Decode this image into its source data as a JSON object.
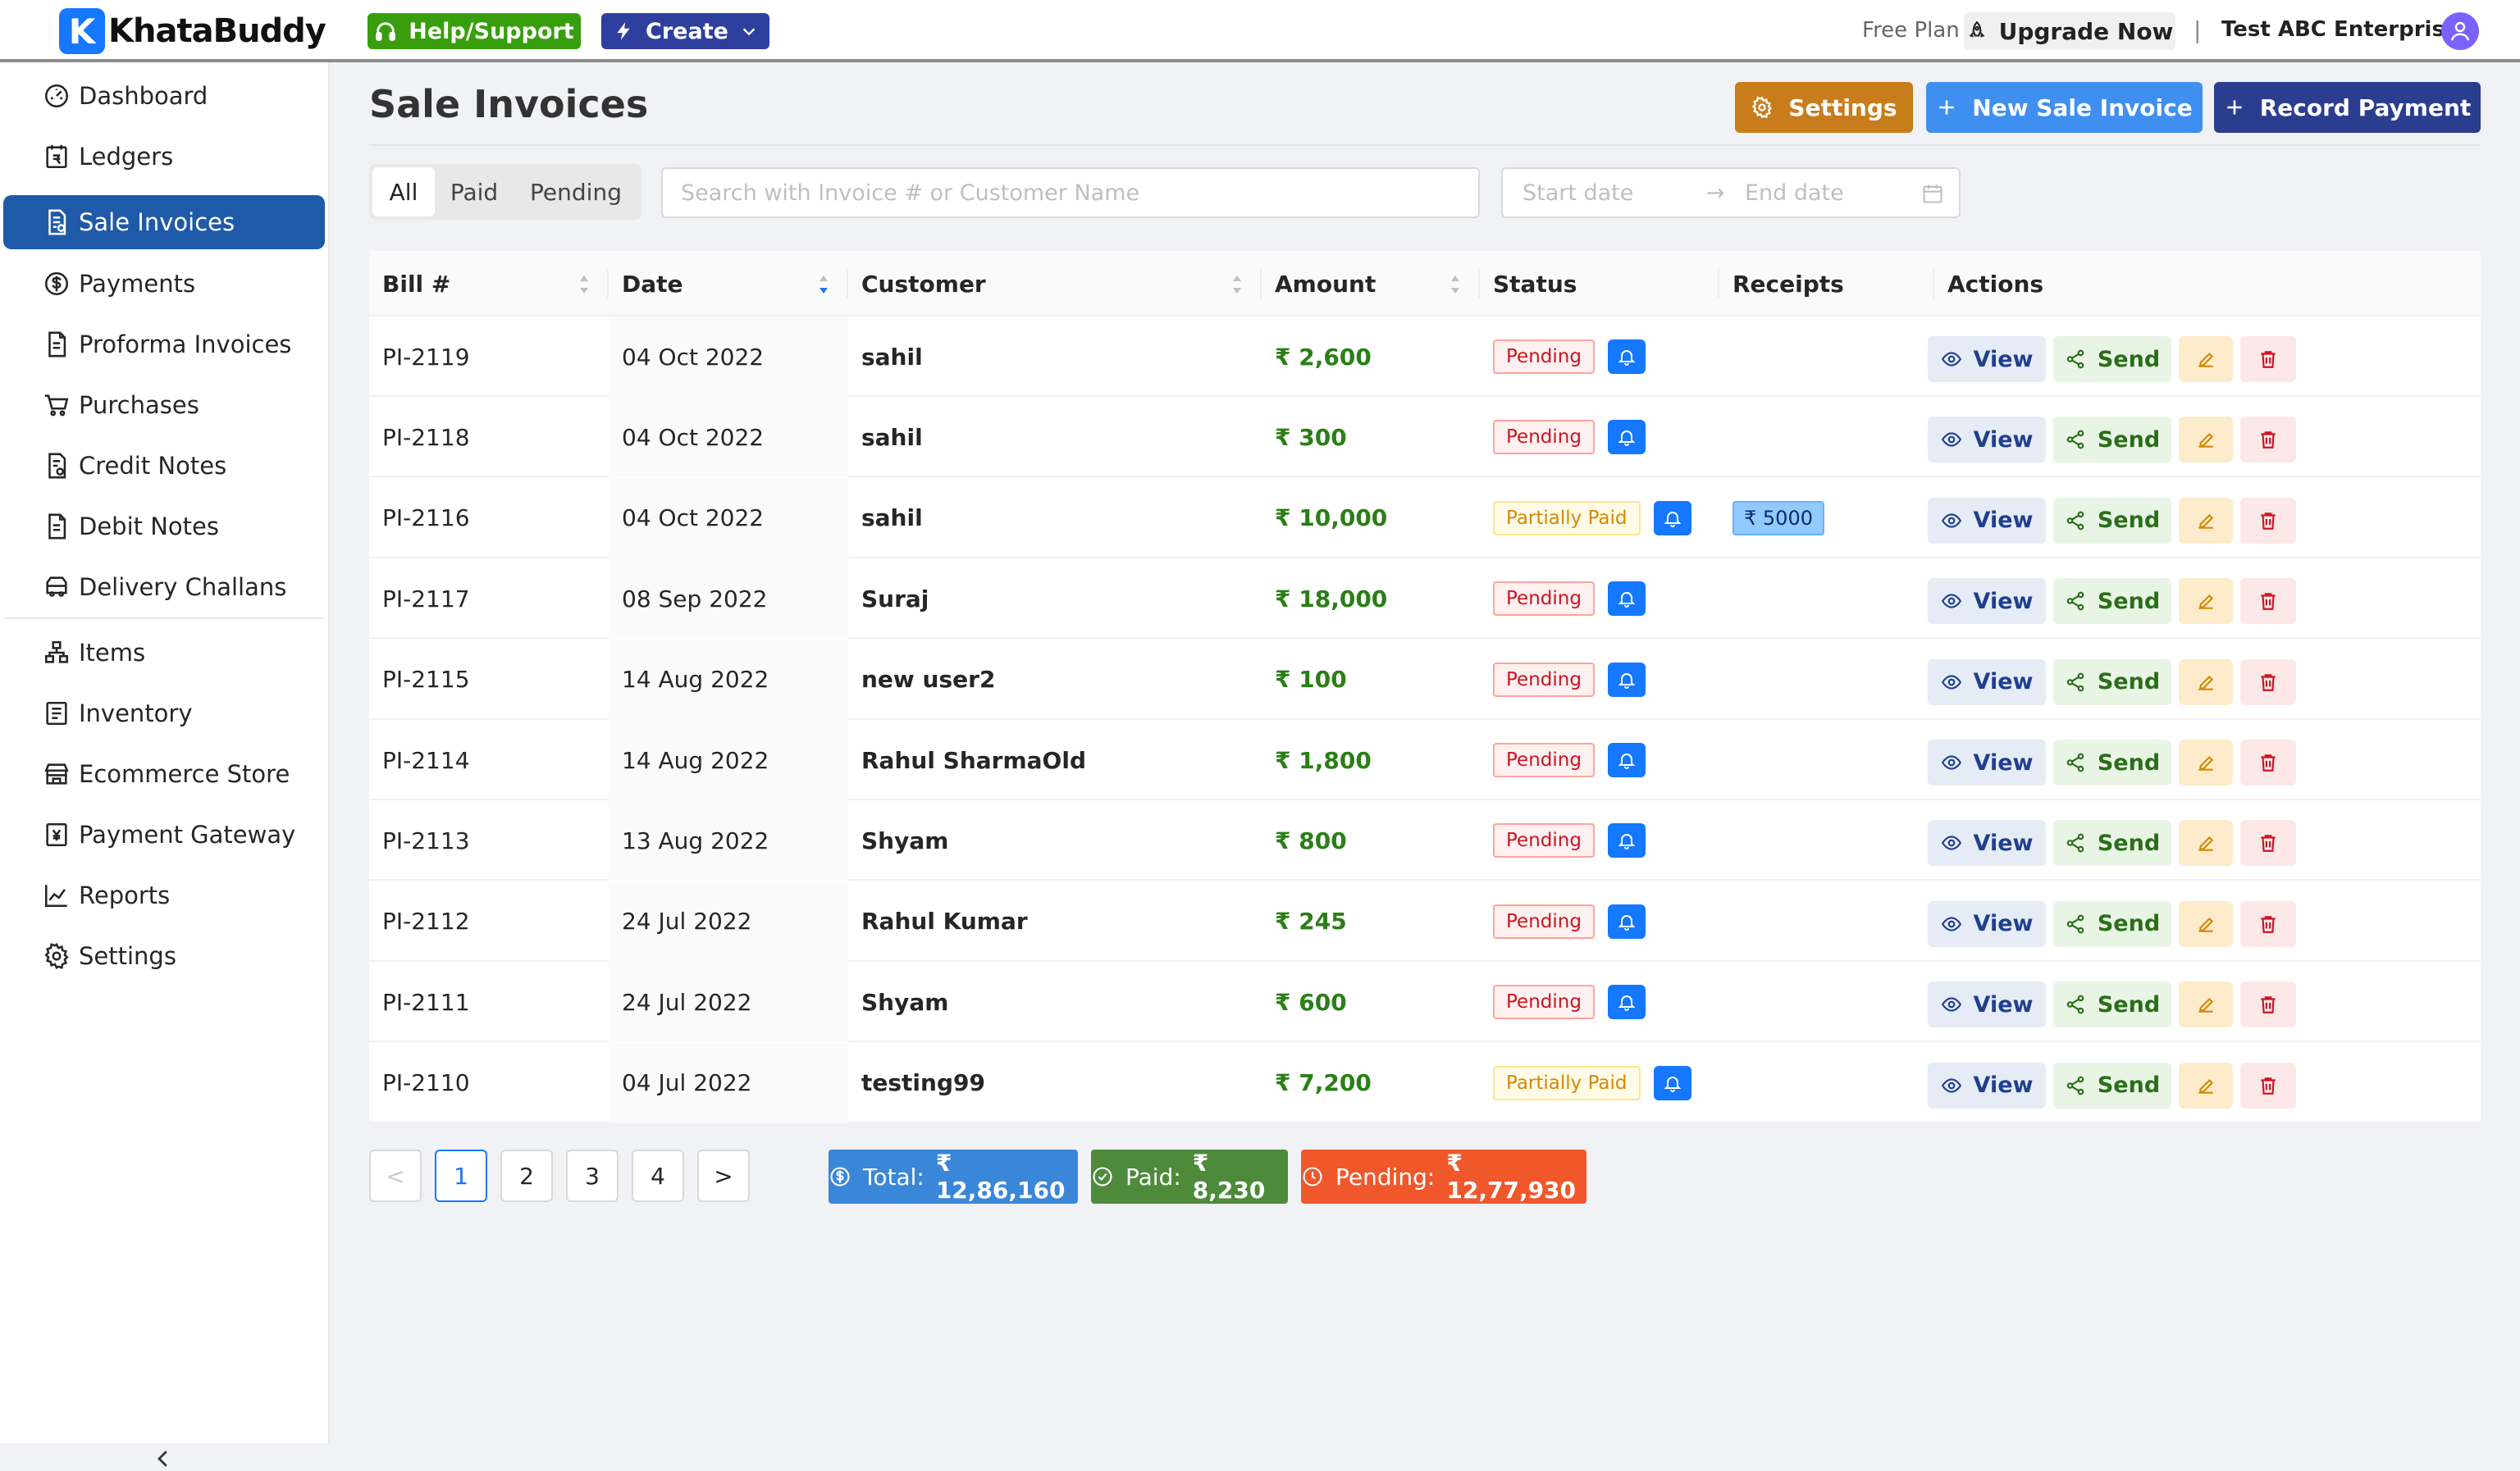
{
  "header": {
    "logo_letter": "K",
    "logo_text": "KhataBuddy",
    "help_label": "Help/Support",
    "create_label": "Create",
    "plan_label": "Free Plan",
    "upgrade_label": "Upgrade Now",
    "separator": "|",
    "company_name": "Test ABC Enterprises"
  },
  "sidebar": {
    "items": [
      {
        "label": "Dashboard",
        "icon": "dashboard-icon"
      },
      {
        "label": "Ledgers",
        "icon": "ledger-icon"
      },
      {
        "label": "Sale Invoices",
        "icon": "invoice-icon",
        "active": true
      },
      {
        "label": "Payments",
        "icon": "dollar-circle-icon"
      },
      {
        "label": "Proforma Invoices",
        "icon": "file-icon"
      },
      {
        "label": "Purchases",
        "icon": "cart-icon"
      },
      {
        "label": "Credit Notes",
        "icon": "credit-note-icon"
      },
      {
        "label": "Debit Notes",
        "icon": "file-icon"
      },
      {
        "label": "Delivery Challans",
        "icon": "truck-icon"
      },
      {
        "label": "Items",
        "icon": "items-icon"
      },
      {
        "label": "Inventory",
        "icon": "inventory-icon"
      },
      {
        "label": "Ecommerce Store",
        "icon": "shop-icon"
      },
      {
        "label": "Payment Gateway",
        "icon": "gateway-icon"
      },
      {
        "label": "Reports",
        "icon": "chart-icon"
      },
      {
        "label": "Settings",
        "icon": "gear-icon"
      }
    ],
    "collapse_icon": "chevron-left-icon"
  },
  "main": {
    "title": "Sale Invoices",
    "settings_label": "Settings",
    "new_invoice_label": "New Sale Invoice",
    "record_payment_label": "Record Payment",
    "filters": [
      "All",
      "Paid",
      "Pending"
    ],
    "active_filter": "All",
    "search_placeholder": "Search with Invoice # or Customer Name",
    "start_date_placeholder": "Start date",
    "end_date_placeholder": "End date",
    "range_arrow": "→"
  },
  "table": {
    "columns": [
      "Bill #",
      "Date",
      "Customer",
      "Amount",
      "Status",
      "Receipts",
      "Actions"
    ],
    "rows": [
      {
        "bill": "PI-2119",
        "date": "04 Oct 2022",
        "customer": "sahil",
        "amount": "₹ 2,600",
        "status": "Pending",
        "receipt": ""
      },
      {
        "bill": "PI-2118",
        "date": "04 Oct 2022",
        "customer": "sahil",
        "amount": "₹ 300",
        "status": "Pending",
        "receipt": ""
      },
      {
        "bill": "PI-2116",
        "date": "04 Oct 2022",
        "customer": "sahil",
        "amount": "₹ 10,000",
        "status": "Partially Paid",
        "receipt": "₹ 5000"
      },
      {
        "bill": "PI-2117",
        "date": "08 Sep 2022",
        "customer": "Suraj",
        "amount": "₹ 18,000",
        "status": "Pending",
        "receipt": ""
      },
      {
        "bill": "PI-2115",
        "date": "14 Aug 2022",
        "customer": "new user2",
        "amount": "₹ 100",
        "status": "Pending",
        "receipt": ""
      },
      {
        "bill": "PI-2114",
        "date": "14 Aug 2022",
        "customer": "Rahul SharmaOld",
        "amount": "₹ 1,800",
        "status": "Pending",
        "receipt": ""
      },
      {
        "bill": "PI-2113",
        "date": "13 Aug 2022",
        "customer": "Shyam",
        "amount": "₹ 800",
        "status": "Pending",
        "receipt": ""
      },
      {
        "bill": "PI-2112",
        "date": "24 Jul 2022",
        "customer": "Rahul Kumar",
        "amount": "₹ 245",
        "status": "Pending",
        "receipt": ""
      },
      {
        "bill": "PI-2111",
        "date": "24 Jul 2022",
        "customer": "Shyam",
        "amount": "₹ 600",
        "status": "Pending",
        "receipt": ""
      },
      {
        "bill": "PI-2110",
        "date": "04 Jul 2022",
        "customer": "testing99",
        "amount": "₹ 7,200",
        "status": "Partially Paid",
        "receipt": ""
      }
    ],
    "view_label": "View",
    "send_label": "Send"
  },
  "pagination": {
    "pages": [
      "1",
      "2",
      "3",
      "4"
    ],
    "current": "1",
    "prev": "<",
    "next": ">"
  },
  "totals": {
    "total_label": "Total:",
    "total_value": "₹ 12,86,160",
    "paid_label": "Paid:",
    "paid_value": "₹ 8,230",
    "pending_label": "Pending:",
    "pending_value": "₹ 12,77,930"
  },
  "colors": {
    "primary": "#1677ff",
    "sidebar_active": "#1f5aa8",
    "help_green": "#389e0d",
    "create_navy": "#2f3f9e",
    "settings_orange": "#c87c1b",
    "record_navy": "#2b3d8f",
    "amount_green": "#2a7f16",
    "pending_red": "#cf1322",
    "partial_gold": "#d48806"
  }
}
